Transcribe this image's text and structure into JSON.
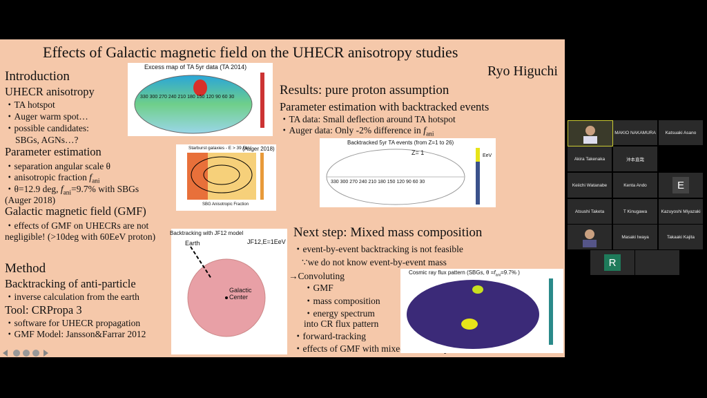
{
  "slide": {
    "title": "Effects of Galactic magnetic field on the UHECR anisotropy studies",
    "author": "Ryo Higuchi",
    "introduction": {
      "heading": "Introduction",
      "anisotropy": {
        "heading": "UHECR anisotropy",
        "items": [
          "・TA hotspot",
          "・Auger warm spot…",
          "・possible candidates:",
          "SBGs, AGNs…?"
        ]
      },
      "parameter": {
        "heading": "Parameter estimation",
        "items": [
          "・separation angular scale θ",
          [
            "・anisotropic fraction ",
            "f",
            "ani"
          ],
          [
            "・θ=12.9 deg, ",
            "f",
            "ani",
            "=9.7% with SBGs"
          ],
          "(Auger 2018)"
        ]
      },
      "gmf": {
        "heading": "Galactic magnetic field (GMF)",
        "items": [
          "・effects of GMF on UHECRs are not",
          "negligible! (>10deg with 60EeV proton)"
        ]
      }
    },
    "method": {
      "heading": "Method",
      "sub1": "Backtracking of anti-particle",
      "items1": [
        "・inverse calculation from the earth"
      ],
      "sub2": "Tool: CRPropa 3",
      "items2": [
        "・software for UHECR propagation",
        "・GMF Model: Jansson&Farrar 2012"
      ]
    },
    "results": {
      "heading": "Results: pure proton assumption",
      "sub": "Parameter estimation with backtracked events",
      "items": [
        "・TA data: Small deflection around TA hotspot",
        [
          "・Auger data: Only -2% difference in ",
          "f",
          "ani"
        ]
      ]
    },
    "next_step": {
      "heading": "Next step: Mixed mass composition",
      "items": [
        "・event-by-event backtracking is not feasible",
        "∵we do not know event-by-event mass",
        "→Convoluting",
        "・GMF",
        "・mass composition",
        "・energy spectrum",
        "into CR flux pattern",
        "・forward-tracking",
        "・effects of GMF with mixed mass composition"
      ]
    },
    "figures": {
      "ta_map": {
        "title": "Excess map of TA 5yr data (TA 2014)",
        "longitudes": "330 300 270 240 210 180 150 120 90 60 30"
      },
      "auger": {
        "title": "Starburst galaxies - E > 39 EeV",
        "source": "(Auger 2018)",
        "xlabel": "SBG Anisotropic Fraction"
      },
      "backtracked": {
        "title": "Backtracked 5yr TA events (from Z=1 to 26)",
        "z": "Z= 1",
        "unit": "EeV",
        "longitudes": "330 300 270 240 210 180 150 120 90 60 30"
      },
      "jf12": {
        "title": "Backtracking with JF12 model",
        "model": "JF12,E=1EeV",
        "earth": "Earth",
        "center": "Galactic Center"
      },
      "flux": {
        "title": [
          "Cosmic ray flux pattern (SBGs, θ =",
          "f",
          "ani",
          "=9.7% )"
        ]
      }
    }
  },
  "participants": [
    "MAKIO NAKAMURA",
    "Katsuaki Asano",
    "Akira Takenaka",
    "沖本直哉",
    "Keiichi Watanabe",
    "Kenta Ando",
    "E",
    "Atsushi Taketa",
    "T Kinugawa",
    "Kazuyoshi Miyazaki",
    "Masaki Iwaya",
    "Takaaki Kajita",
    "R"
  ]
}
